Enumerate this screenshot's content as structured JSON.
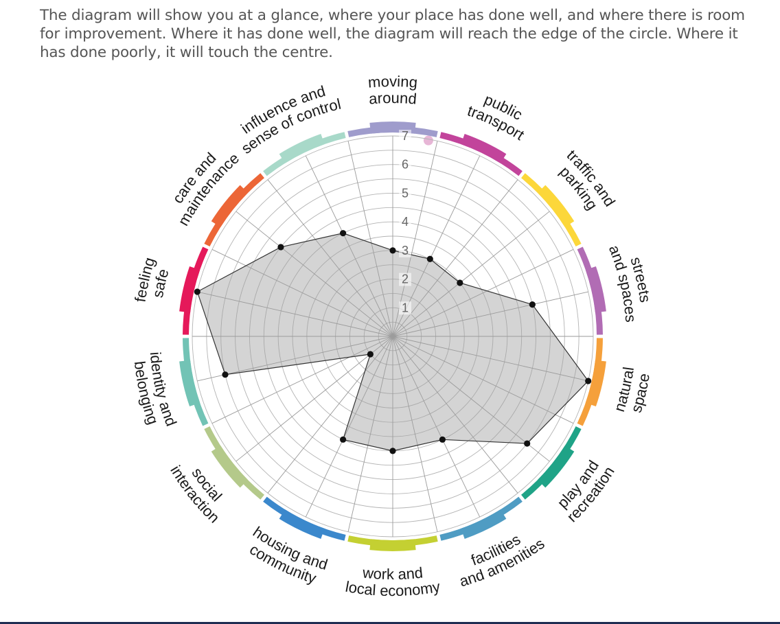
{
  "intro_text": "The diagram will show you at a glance, where your place has done well, and where there is room for improvement. Where it has done well, the diagram will reach the edge of the circle. Where it has done poorly, it will touch the centre.",
  "chart_data": {
    "type": "radar",
    "title": "",
    "rlim": [
      0,
      7
    ],
    "rticks": [
      "1",
      "2",
      "3",
      "4",
      "5",
      "6",
      "7"
    ],
    "grid": true,
    "categories": [
      {
        "lines": [
          "moving",
          "around"
        ],
        "color": "#9f9ccc"
      },
      {
        "lines": [
          "public",
          "transport"
        ],
        "color": "#c2449b"
      },
      {
        "lines": [
          "traffic and",
          "parking"
        ],
        "color": "#fcd73a"
      },
      {
        "lines": [
          "streets",
          "and spaces"
        ],
        "color": "#b16cb4"
      },
      {
        "lines": [
          "natural",
          "space"
        ],
        "color": "#f5a03b"
      },
      {
        "lines": [
          "play and",
          "recreation"
        ],
        "color": "#1fa387"
      },
      {
        "lines": [
          "facilities",
          "and amenities"
        ],
        "color": "#4f9cc3"
      },
      {
        "lines": [
          "work and",
          "local economy"
        ],
        "color": "#c4d032"
      },
      {
        "lines": [
          "housing and",
          "community"
        ],
        "color": "#3b88cc"
      },
      {
        "lines": [
          "social",
          "interaction"
        ],
        "color": "#b4c98a"
      },
      {
        "lines": [
          "identity and",
          "belonging"
        ],
        "color": "#72c3b5"
      },
      {
        "lines": [
          "feeling",
          "safe"
        ],
        "color": "#e5195a"
      },
      {
        "lines": [
          "care and",
          "maintenance"
        ],
        "color": "#ec6637"
      },
      {
        "lines": [
          "influence and",
          "sense of control"
        ],
        "color": "#a8d9c9"
      }
    ],
    "values": [
      3,
      3,
      3,
      5,
      7,
      6,
      4,
      4,
      4,
      1,
      6,
      7,
      5,
      4
    ]
  }
}
